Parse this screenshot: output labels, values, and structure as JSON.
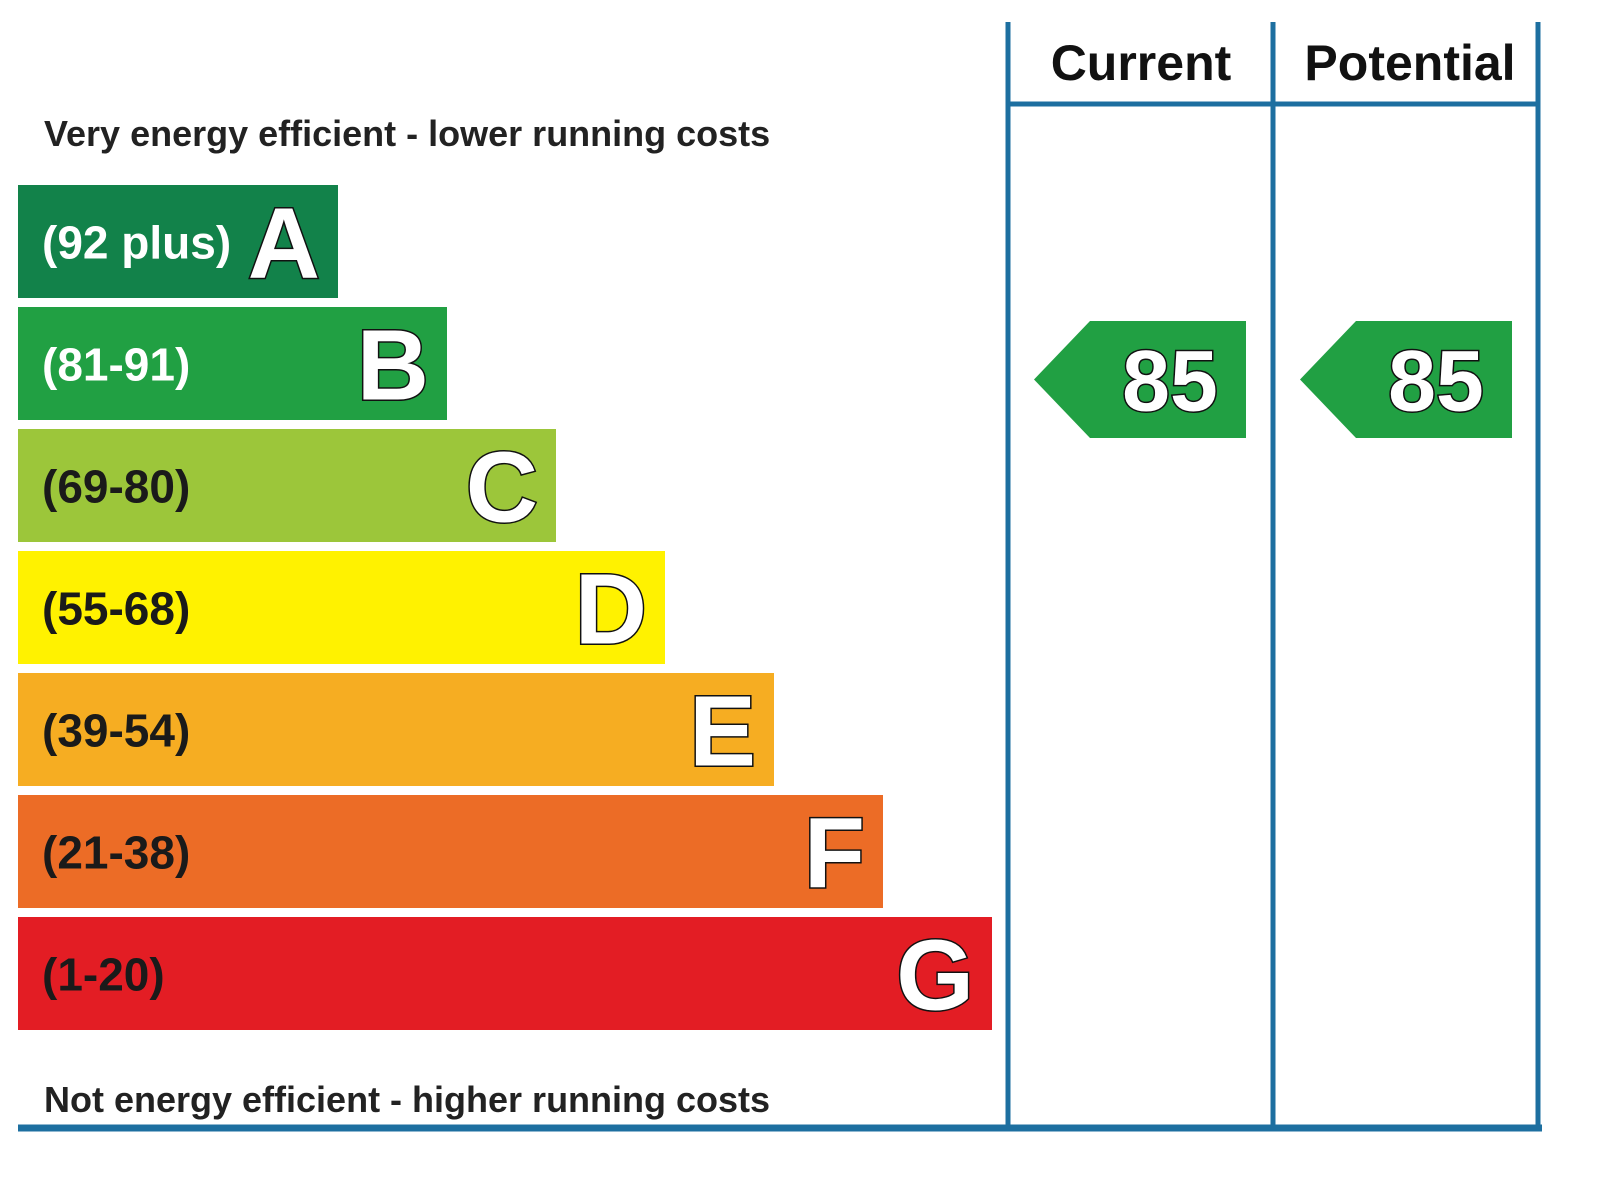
{
  "chart_data": {
    "type": "bar",
    "top_caption": "Very energy efficient - lower running costs",
    "bottom_caption": "Not energy efficient - higher running costs",
    "columns": {
      "current": "Current",
      "potential": "Potential"
    },
    "bands": [
      {
        "letter": "A",
        "range": "(92 plus)",
        "color": "#12824a",
        "text_color": "#ffffff"
      },
      {
        "letter": "B",
        "range": "(81-91)",
        "color": "#21a043",
        "text_color": "#ffffff"
      },
      {
        "letter": "C",
        "range": "(69-80)",
        "color": "#9cc63a",
        "text_color": "#1a1a1a"
      },
      {
        "letter": "D",
        "range": "(55-68)",
        "color": "#fff200",
        "text_color": "#1a1a1a"
      },
      {
        "letter": "E",
        "range": "(39-54)",
        "color": "#f6ad22",
        "text_color": "#1a1a1a"
      },
      {
        "letter": "F",
        "range": "(21-38)",
        "color": "#ec6c26",
        "text_color": "#1a1a1a"
      },
      {
        "letter": "G",
        "range": "(1-20)",
        "color": "#e31d24",
        "text_color": "#1a1a1a"
      }
    ],
    "current_rating": {
      "value": 85,
      "band": "B",
      "color": "#21a043"
    },
    "potential_rating": {
      "value": 85,
      "band": "B",
      "color": "#21a043"
    },
    "frame_color": "#1d6fa0"
  }
}
